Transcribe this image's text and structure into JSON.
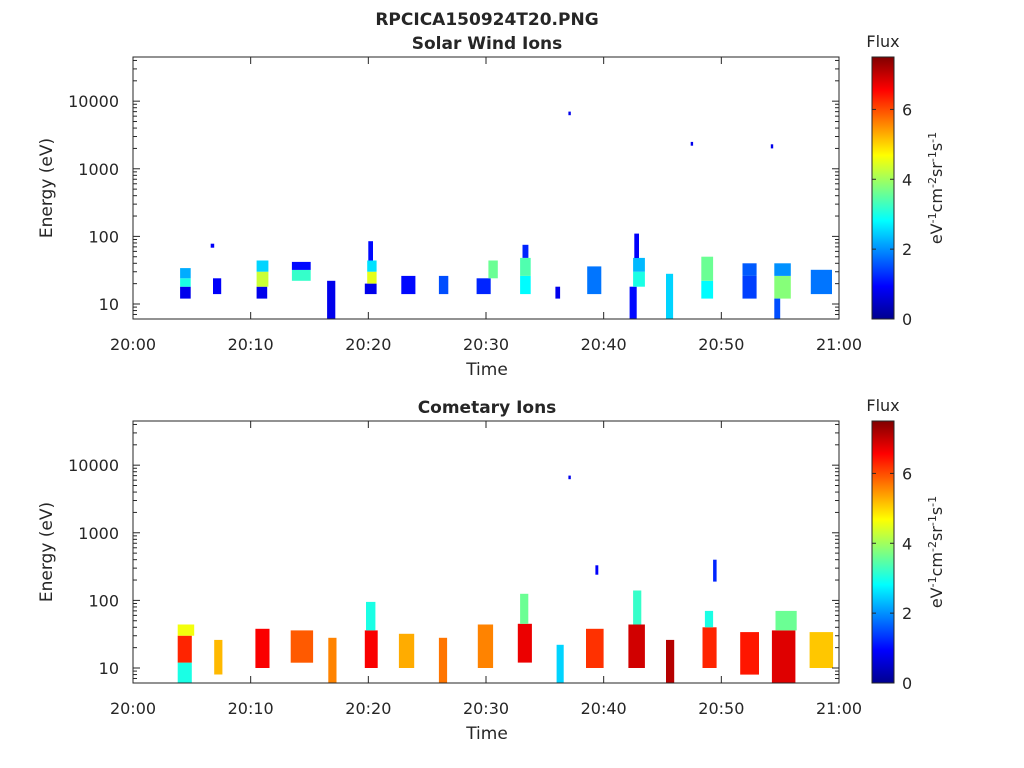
{
  "figure": {
    "title": "RPCICA150924T20.PNG"
  },
  "colormap": "jet",
  "chart_data": [
    {
      "type": "heatmap",
      "title": "Solar Wind Ions",
      "xlabel": "Time",
      "ylabel": "Energy (eV)",
      "x_tick_labels": [
        "20:00",
        "20:10",
        "20:20",
        "20:30",
        "20:40",
        "20:50",
        "21:00"
      ],
      "x_range_minutes": [
        0,
        60
      ],
      "y_scale": "log",
      "y_range": [
        6,
        45000
      ],
      "y_ticks": [
        10,
        100,
        1000,
        10000
      ],
      "y_tick_labels": [
        "10",
        "100",
        "1000",
        "10000"
      ],
      "colorbar": {
        "title": "Flux",
        "label": "eV-1cm-2sr-1s-1",
        "range": [
          0,
          7.5
        ],
        "ticks": [
          0,
          2,
          4,
          6
        ],
        "tick_labels": [
          "0",
          "2",
          "4",
          "6"
        ]
      },
      "cells": [
        {
          "t": 4.0,
          "w": 0.9,
          "e_lo": 12,
          "e_hi": 18,
          "v": 0.8
        },
        {
          "t": 4.0,
          "w": 0.9,
          "e_lo": 18,
          "e_hi": 24,
          "v": 3.0
        },
        {
          "t": 4.0,
          "w": 0.9,
          "e_lo": 24,
          "e_hi": 34,
          "v": 2.2
        },
        {
          "t": 6.8,
          "w": 0.7,
          "e_lo": 14,
          "e_hi": 24,
          "v": 0.9
        },
        {
          "t": 6.6,
          "w": 0.3,
          "e_lo": 68,
          "e_hi": 78,
          "v": 0.9
        },
        {
          "t": 10.5,
          "w": 0.9,
          "e_lo": 12,
          "e_hi": 18,
          "v": 0.8
        },
        {
          "t": 10.5,
          "w": 1.0,
          "e_lo": 18,
          "e_hi": 30,
          "v": 4.3
        },
        {
          "t": 10.5,
          "w": 1.0,
          "e_lo": 30,
          "e_hi": 44,
          "v": 2.5
        },
        {
          "t": 13.5,
          "w": 1.6,
          "e_lo": 22,
          "e_hi": 32,
          "v": 3.2
        },
        {
          "t": 13.5,
          "w": 1.6,
          "e_lo": 32,
          "e_hi": 42,
          "v": 1.0
        },
        {
          "t": 16.5,
          "w": 0.7,
          "e_lo": 6,
          "e_hi": 22,
          "v": 0.8
        },
        {
          "t": 19.7,
          "w": 1.0,
          "e_lo": 14,
          "e_hi": 20,
          "v": 0.8
        },
        {
          "t": 19.9,
          "w": 0.8,
          "e_lo": 20,
          "e_hi": 30,
          "v": 4.5
        },
        {
          "t": 19.9,
          "w": 0.8,
          "e_lo": 30,
          "e_hi": 44,
          "v": 2.6
        },
        {
          "t": 20.0,
          "w": 0.4,
          "e_lo": 44,
          "e_hi": 85,
          "v": 1.0
        },
        {
          "t": 22.8,
          "w": 1.2,
          "e_lo": 14,
          "e_hi": 26,
          "v": 1.0
        },
        {
          "t": 26.0,
          "w": 0.8,
          "e_lo": 14,
          "e_hi": 26,
          "v": 1.5
        },
        {
          "t": 29.2,
          "w": 1.2,
          "e_lo": 14,
          "e_hi": 24,
          "v": 1.2
        },
        {
          "t": 30.2,
          "w": 0.8,
          "e_lo": 24,
          "e_hi": 44,
          "v": 3.6
        },
        {
          "t": 32.9,
          "w": 0.9,
          "e_lo": 14,
          "e_hi": 26,
          "v": 2.8
        },
        {
          "t": 32.9,
          "w": 0.9,
          "e_lo": 26,
          "e_hi": 48,
          "v": 3.4
        },
        {
          "t": 33.1,
          "w": 0.5,
          "e_lo": 48,
          "e_hi": 75,
          "v": 1.2
        },
        {
          "t": 35.9,
          "w": 0.4,
          "e_lo": 12,
          "e_hi": 18,
          "v": 0.8
        },
        {
          "t": 38.6,
          "w": 1.2,
          "e_lo": 14,
          "e_hi": 36,
          "v": 1.8
        },
        {
          "t": 42.2,
          "w": 0.6,
          "e_lo": 6,
          "e_hi": 18,
          "v": 1.0
        },
        {
          "t": 42.5,
          "w": 1.0,
          "e_lo": 18,
          "e_hi": 30,
          "v": 3.0
        },
        {
          "t": 42.5,
          "w": 1.0,
          "e_lo": 30,
          "e_hi": 48,
          "v": 2.3
        },
        {
          "t": 42.6,
          "w": 0.4,
          "e_lo": 48,
          "e_hi": 110,
          "v": 0.9
        },
        {
          "t": 45.3,
          "w": 0.6,
          "e_lo": 6,
          "e_hi": 28,
          "v": 2.5
        },
        {
          "t": 48.3,
          "w": 1.0,
          "e_lo": 12,
          "e_hi": 22,
          "v": 2.8
        },
        {
          "t": 48.3,
          "w": 1.0,
          "e_lo": 22,
          "e_hi": 50,
          "v": 3.6
        },
        {
          "t": 51.8,
          "w": 1.2,
          "e_lo": 12,
          "e_hi": 26,
          "v": 1.4
        },
        {
          "t": 51.8,
          "w": 1.2,
          "e_lo": 26,
          "e_hi": 40,
          "v": 1.6
        },
        {
          "t": 54.5,
          "w": 1.4,
          "e_lo": 12,
          "e_hi": 26,
          "v": 3.8
        },
        {
          "t": 54.5,
          "w": 1.4,
          "e_lo": 26,
          "e_hi": 40,
          "v": 2.0
        },
        {
          "t": 54.5,
          "w": 0.5,
          "e_lo": 6,
          "e_hi": 12,
          "v": 1.5
        },
        {
          "t": 57.6,
          "w": 1.8,
          "e_lo": 14,
          "e_hi": 32,
          "v": 1.8
        },
        {
          "t": 37.0,
          "w": 0.2,
          "e_lo": 6200,
          "e_hi": 7000,
          "v": 0.8
        },
        {
          "t": 47.4,
          "w": 0.2,
          "e_lo": 2200,
          "e_hi": 2500,
          "v": 0.8
        },
        {
          "t": 54.2,
          "w": 0.2,
          "e_lo": 2000,
          "e_hi": 2300,
          "v": 0.8
        }
      ]
    },
    {
      "type": "heatmap",
      "title": "Cometary Ions",
      "xlabel": "Time",
      "ylabel": "Energy (eV)",
      "x_tick_labels": [
        "20:00",
        "20:10",
        "20:20",
        "20:30",
        "20:40",
        "20:50",
        "21:00"
      ],
      "x_range_minutes": [
        0,
        60
      ],
      "y_scale": "log",
      "y_range": [
        6,
        45000
      ],
      "y_ticks": [
        10,
        100,
        1000,
        10000
      ],
      "y_tick_labels": [
        "10",
        "100",
        "1000",
        "10000"
      ],
      "colorbar": {
        "title": "Flux",
        "label": "eV-1cm-2sr-1s-1",
        "range": [
          0,
          7.5
        ],
        "ticks": [
          0,
          2,
          4,
          6
        ],
        "tick_labels": [
          "0",
          "2",
          "4",
          "6"
        ]
      },
      "cells": [
        {
          "t": 3.8,
          "w": 1.2,
          "e_lo": 6,
          "e_hi": 12,
          "v": 3.0
        },
        {
          "t": 3.8,
          "w": 1.2,
          "e_lo": 12,
          "e_hi": 30,
          "v": 6.3
        },
        {
          "t": 3.8,
          "w": 1.4,
          "e_lo": 30,
          "e_hi": 44,
          "v": 4.6
        },
        {
          "t": 6.9,
          "w": 0.7,
          "e_lo": 8,
          "e_hi": 26,
          "v": 5.2
        },
        {
          "t": 10.4,
          "w": 1.2,
          "e_lo": 10,
          "e_hi": 38,
          "v": 6.6
        },
        {
          "t": 13.4,
          "w": 1.9,
          "e_lo": 12,
          "e_hi": 36,
          "v": 5.9
        },
        {
          "t": 16.6,
          "w": 0.7,
          "e_lo": 6,
          "e_hi": 28,
          "v": 5.6
        },
        {
          "t": 19.7,
          "w": 1.1,
          "e_lo": 10,
          "e_hi": 36,
          "v": 6.6
        },
        {
          "t": 19.8,
          "w": 0.8,
          "e_lo": 36,
          "e_hi": 95,
          "v": 3.0
        },
        {
          "t": 22.6,
          "w": 1.3,
          "e_lo": 10,
          "e_hi": 32,
          "v": 5.3
        },
        {
          "t": 26.0,
          "w": 0.7,
          "e_lo": 6,
          "e_hi": 28,
          "v": 5.7
        },
        {
          "t": 29.3,
          "w": 1.3,
          "e_lo": 10,
          "e_hi": 44,
          "v": 5.6
        },
        {
          "t": 32.7,
          "w": 1.2,
          "e_lo": 12,
          "e_hi": 45,
          "v": 6.7
        },
        {
          "t": 32.9,
          "w": 0.7,
          "e_lo": 45,
          "e_hi": 125,
          "v": 3.6
        },
        {
          "t": 36.0,
          "w": 0.6,
          "e_lo": 6,
          "e_hi": 22,
          "v": 2.5
        },
        {
          "t": 38.5,
          "w": 1.5,
          "e_lo": 10,
          "e_hi": 38,
          "v": 6.2
        },
        {
          "t": 42.1,
          "w": 1.4,
          "e_lo": 10,
          "e_hi": 44,
          "v": 6.9
        },
        {
          "t": 42.5,
          "w": 0.7,
          "e_lo": 44,
          "e_hi": 140,
          "v": 3.2
        },
        {
          "t": 45.3,
          "w": 0.7,
          "e_lo": 6,
          "e_hi": 26,
          "v": 7.1
        },
        {
          "t": 48.4,
          "w": 1.2,
          "e_lo": 10,
          "e_hi": 40,
          "v": 6.3
        },
        {
          "t": 48.6,
          "w": 0.7,
          "e_lo": 40,
          "e_hi": 70,
          "v": 3.0
        },
        {
          "t": 51.6,
          "w": 1.6,
          "e_lo": 8,
          "e_hi": 34,
          "v": 6.4
        },
        {
          "t": 54.3,
          "w": 2.0,
          "e_lo": 6,
          "e_hi": 36,
          "v": 6.8
        },
        {
          "t": 54.6,
          "w": 1.8,
          "e_lo": 36,
          "e_hi": 70,
          "v": 3.6
        },
        {
          "t": 57.5,
          "w": 2.0,
          "e_lo": 10,
          "e_hi": 34,
          "v": 5.1
        },
        {
          "t": 37.0,
          "w": 0.2,
          "e_lo": 6200,
          "e_hi": 7000,
          "v": 0.8
        },
        {
          "t": 39.3,
          "w": 0.25,
          "e_lo": 240,
          "e_hi": 330,
          "v": 0.9
        },
        {
          "t": 49.3,
          "w": 0.3,
          "e_lo": 190,
          "e_hi": 400,
          "v": 1.2
        }
      ]
    }
  ]
}
